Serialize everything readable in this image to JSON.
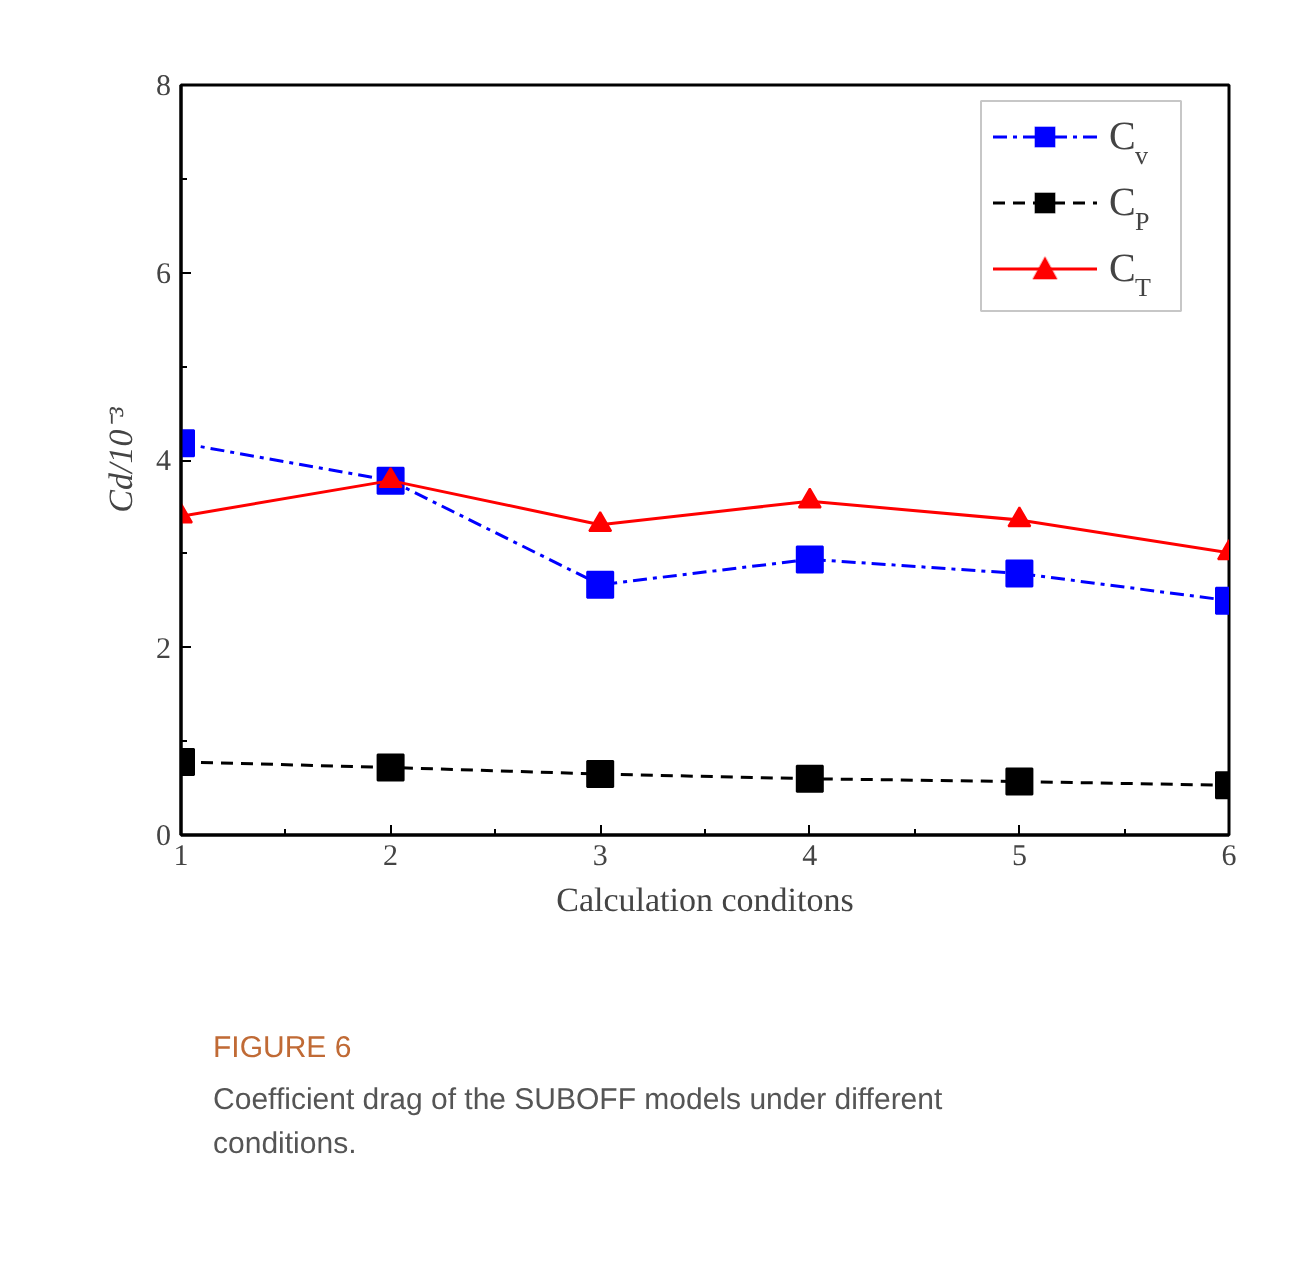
{
  "chart_data": {
    "type": "line",
    "xlabel": "Calculation conditons",
    "ylabel": "Cd/10⁻³",
    "x": [
      1,
      2,
      3,
      4,
      5,
      6
    ],
    "xlim": [
      1,
      6
    ],
    "xticks": [
      1,
      2,
      3,
      4,
      5,
      6
    ],
    "ylim": [
      0,
      8
    ],
    "yticks": [
      0,
      2,
      4,
      6,
      8
    ],
    "series": [
      {
        "name": "C$_{v}$",
        "color": "#0000ff",
        "line_style": "dashdot",
        "marker": "square",
        "values": [
          4.18,
          3.78,
          2.67,
          2.94,
          2.79,
          2.5
        ]
      },
      {
        "name": "C$_{P}$",
        "color": "#000000",
        "line_style": "dashed",
        "marker": "square",
        "values": [
          0.78,
          0.72,
          0.65,
          0.6,
          0.57,
          0.53
        ]
      },
      {
        "name": "C$_{T}$",
        "color": "#ff0000",
        "line_style": "solid",
        "marker": "triangle",
        "values": [
          3.4,
          3.78,
          3.31,
          3.56,
          3.36,
          3.01
        ]
      }
    ],
    "legend": "top right",
    "grid": false,
    "annotations": [
      "FIGURE 6",
      "Coefficient drag of the SUBOFF models under different conditions."
    ]
  }
}
